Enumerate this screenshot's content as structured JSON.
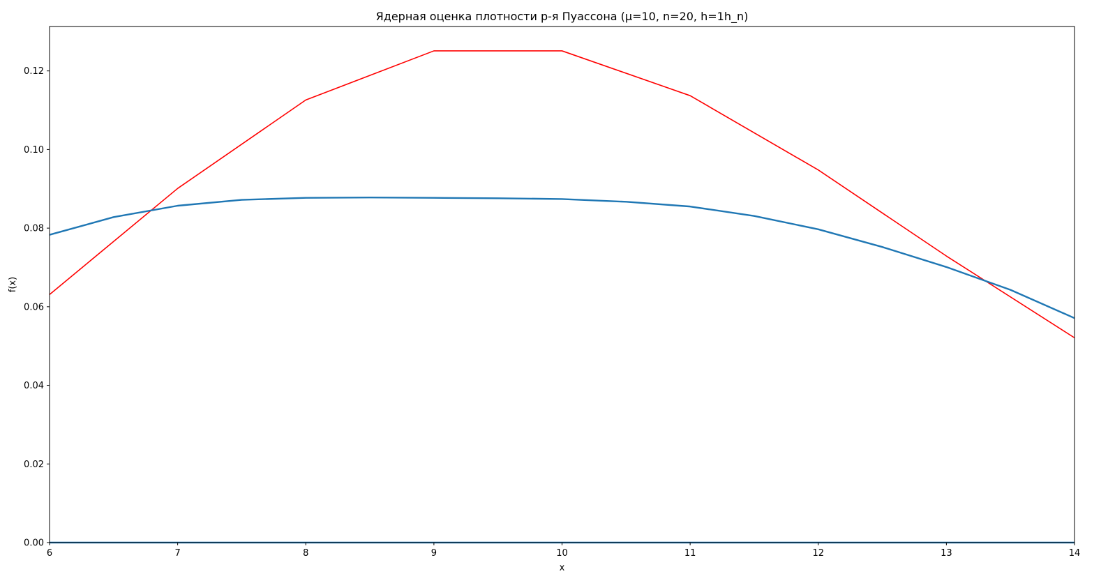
{
  "chart_data": {
    "type": "line",
    "title": "Ядерная оценка плотности р-я Пуассона (μ=10, n=20, h=1h_n)",
    "xlabel": "x",
    "ylabel": "f(x)",
    "xlim": [
      6,
      14
    ],
    "ylim": [
      0,
      0.1313
    ],
    "x_ticks": [
      6,
      7,
      8,
      9,
      10,
      11,
      12,
      13,
      14
    ],
    "x_tick_labels": [
      "6",
      "7",
      "8",
      "9",
      "10",
      "11",
      "12",
      "13",
      "14"
    ],
    "y_ticks": [
      0,
      0.02,
      0.04,
      0.06,
      0.08,
      0.1,
      0.12
    ],
    "y_tick_labels": [
      "0.00",
      "0.02",
      "0.04",
      "0.06",
      "0.08",
      "0.10",
      "0.12"
    ],
    "grid": false,
    "legend": "none",
    "series": [
      {
        "color": "#ff0000",
        "line_width": 1.6,
        "x": [
          6,
          7,
          8,
          9,
          10,
          11,
          12,
          13,
          14
        ],
        "y": [
          0.0631,
          0.0901,
          0.1126,
          0.1251,
          0.1251,
          0.1137,
          0.0948,
          0.0729,
          0.0521
        ]
      },
      {
        "color": "#1f77b4",
        "line_width": 2.4,
        "x": [
          6,
          6.5,
          7,
          7.5,
          8,
          8.5,
          9,
          9.5,
          10,
          10.5,
          11,
          11.5,
          12,
          12.5,
          13,
          13.5,
          14
        ],
        "y": [
          0.0783,
          0.0828,
          0.0857,
          0.0872,
          0.0877,
          0.0878,
          0.0877,
          0.0876,
          0.0874,
          0.0867,
          0.0855,
          0.0831,
          0.0797,
          0.0752,
          0.0701,
          0.0643,
          0.0571
        ]
      },
      {
        "color": "#1f77b4",
        "line_width": 2.4,
        "x": [
          6,
          14
        ],
        "y": [
          0,
          0
        ]
      }
    ]
  }
}
